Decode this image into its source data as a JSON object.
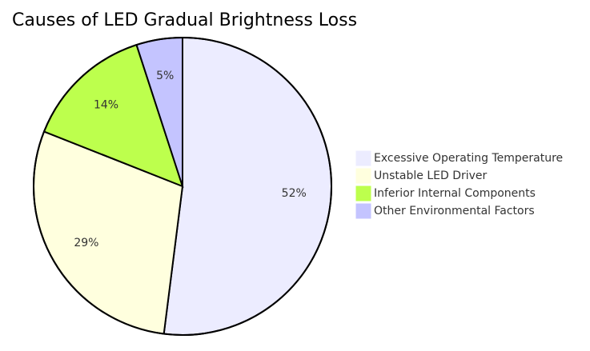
{
  "chart_data": {
    "type": "pie",
    "title": "Causes of LED Gradual Brightness Loss",
    "categories": [
      "Excessive Operating Temperature",
      "Unstable LED Driver",
      "Inferior Internal Components",
      "Other Environmental Factors"
    ],
    "values": [
      52,
      29,
      14,
      5
    ],
    "value_labels": [
      "52%",
      "29%",
      "14%",
      "5%"
    ],
    "colors": [
      "#ececff",
      "#ffffde",
      "#bdff4d",
      "#c4c4ff"
    ],
    "legend": "right"
  }
}
